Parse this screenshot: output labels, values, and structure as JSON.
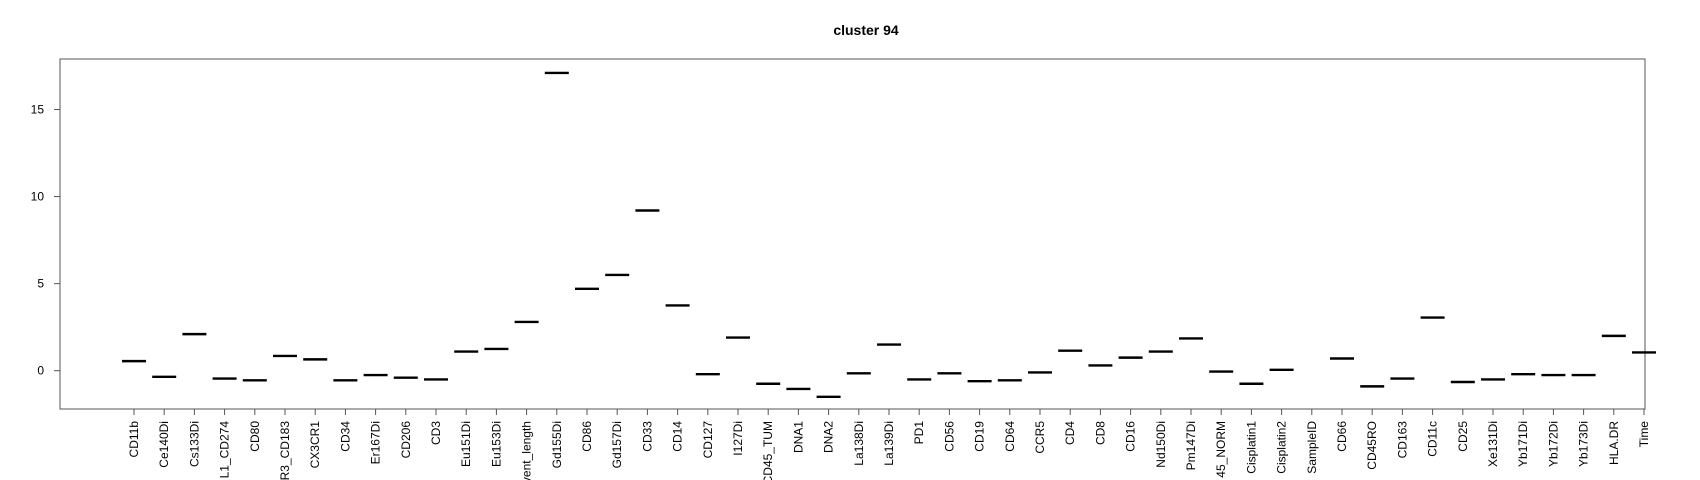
{
  "chart_data": {
    "type": "scatter",
    "title": "cluster 94",
    "xlabel": "",
    "ylabel": "",
    "ylim": [
      -2.2,
      17.9
    ],
    "yticks": [
      0,
      5,
      10,
      15
    ],
    "ytick_labels": [
      "0",
      "5",
      "10",
      "15"
    ],
    "mark": "horizontal-dash",
    "grid": false,
    "categories": [
      "CD11b",
      "Ce140Di",
      "Cs133Di",
      "L1_CD274",
      "CD80",
      "R3_CD183",
      "CX3CR1",
      "CD34",
      "Er167Di",
      "CD206",
      "CD3",
      "Eu151Di",
      "Eu153Di",
      "vent_length",
      "Gd155Di",
      "CD86",
      "Gd157Di",
      "CD33",
      "CD14",
      "CD127",
      "I127Di",
      "CD45_TUM",
      "DNA1",
      "DNA2",
      "La138Di",
      "La139Di",
      "PD1",
      "CD56",
      "CD19",
      "CD64",
      "CCR5",
      "CD4",
      "CD8",
      "CD16",
      "Nd150Di",
      "Pm147Di",
      "45_NORM",
      "Cisplatin1",
      "Cisplatin2",
      "SampleID",
      "CD66",
      "CD45RO",
      "CD163",
      "CD11c",
      "CD25",
      "Xe131Di",
      "Yb171Di",
      "Yb172Di",
      "Yb173Di",
      "HLA.DR",
      "Time"
    ],
    "values": [
      0.55,
      -0.35,
      2.1,
      -0.45,
      -0.55,
      0.85,
      0.65,
      -0.55,
      -0.25,
      -0.4,
      -0.5,
      1.1,
      1.25,
      2.8,
      17.1,
      4.7,
      5.5,
      9.2,
      3.75,
      -0.2,
      1.9,
      -0.75,
      -1.05,
      -1.5,
      -0.15,
      1.5,
      -0.5,
      -0.15,
      -0.6,
      -0.55,
      -0.1,
      1.15,
      0.3,
      0.75,
      1.1,
      1.85,
      -0.05,
      -0.75,
      0.05,
      null,
      0.7,
      -0.9,
      -0.45,
      3.05,
      -0.65,
      -0.5,
      -0.2,
      -0.25,
      -0.25,
      2.0,
      1.05
    ]
  }
}
